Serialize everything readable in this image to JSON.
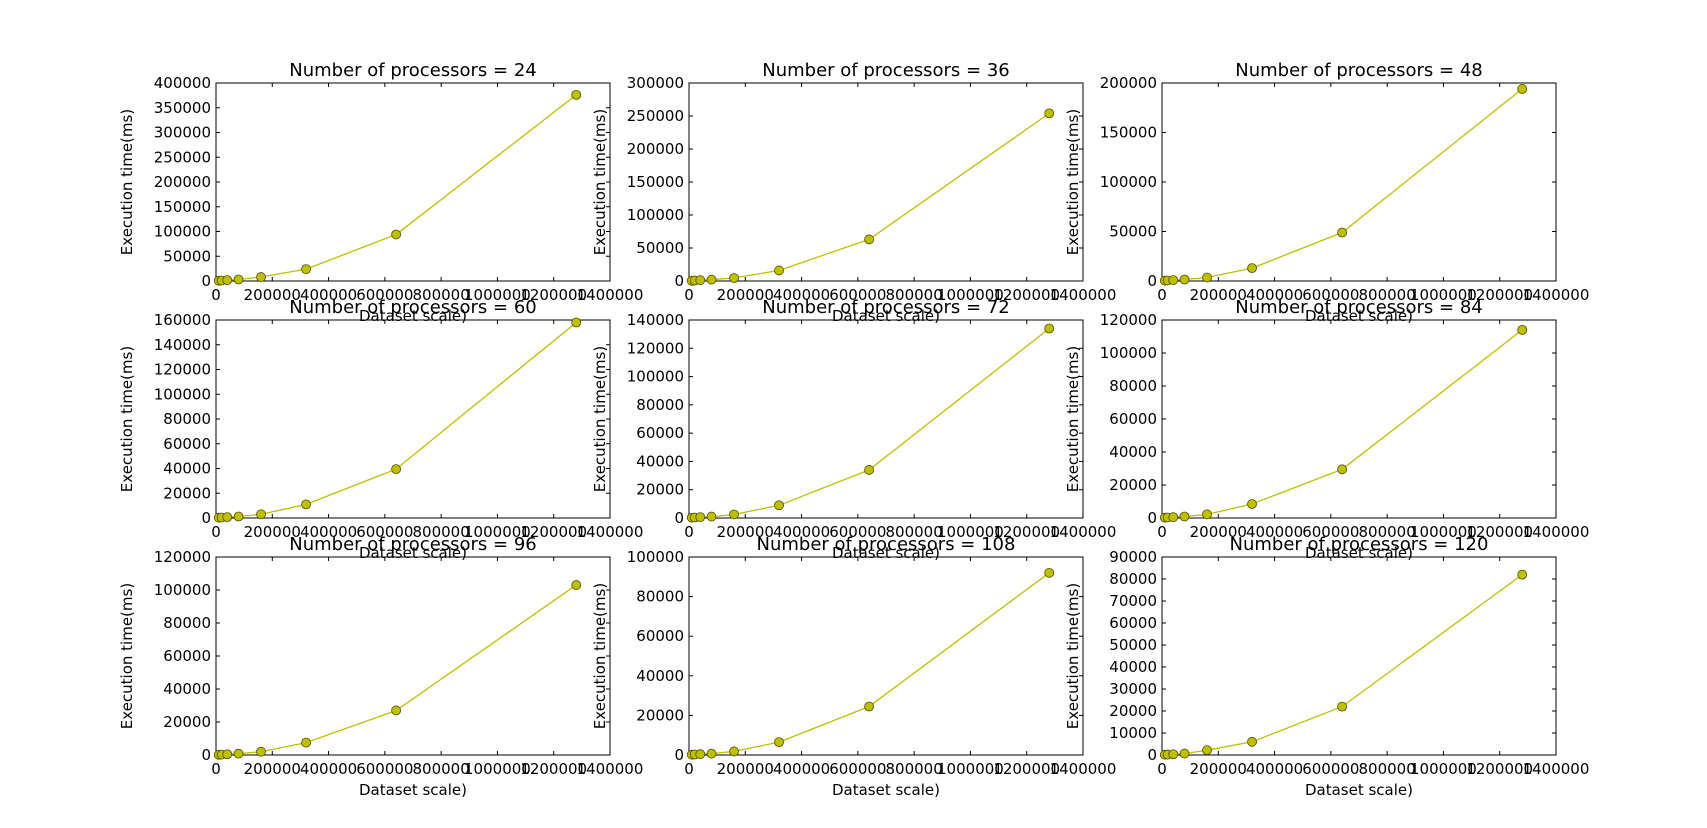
{
  "figure": {
    "background": "#ffffff"
  },
  "style": {
    "line_color": "#bfbf00",
    "marker_fill": "#bfbf00",
    "marker_edge": "#4d4d00",
    "axes_color": "#000000"
  },
  "chart_data": [
    {
      "type": "line",
      "title": "Number of processors = 24",
      "xlabel": "Dataset scale)",
      "ylabel": "Execution time(ms)",
      "xlim": [
        0,
        1400000
      ],
      "ylim": [
        0,
        400000
      ],
      "xticks": [
        0,
        200000,
        400000,
        600000,
        800000,
        1000000,
        1200000,
        1400000
      ],
      "yticks": [
        0,
        50000,
        100000,
        150000,
        200000,
        250000,
        300000,
        350000,
        400000
      ],
      "x": [
        10000,
        20000,
        40000,
        80000,
        160000,
        320000,
        640000,
        1280000
      ],
      "y": [
        500,
        1000,
        1800,
        3000,
        8000,
        24000,
        94000,
        376000
      ]
    },
    {
      "type": "line",
      "title": "Number of processors = 36",
      "xlabel": "Dataset scale)",
      "ylabel": "Execution time(ms)",
      "xlim": [
        0,
        1400000
      ],
      "ylim": [
        0,
        300000
      ],
      "xticks": [
        0,
        200000,
        400000,
        600000,
        800000,
        1000000,
        1200000,
        1400000
      ],
      "yticks": [
        0,
        50000,
        100000,
        150000,
        200000,
        250000,
        300000
      ],
      "x": [
        10000,
        20000,
        40000,
        80000,
        160000,
        320000,
        640000,
        1280000
      ],
      "y": [
        400,
        700,
        1200,
        2000,
        4500,
        16000,
        63000,
        254000
      ]
    },
    {
      "type": "line",
      "title": "Number of processors = 48",
      "xlabel": "Dataset scale)",
      "ylabel": "Execution time(ms)",
      "xlim": [
        0,
        1400000
      ],
      "ylim": [
        0,
        200000
      ],
      "xticks": [
        0,
        200000,
        400000,
        600000,
        800000,
        1000000,
        1200000,
        1400000
      ],
      "yticks": [
        0,
        50000,
        100000,
        150000,
        200000
      ],
      "x": [
        10000,
        20000,
        40000,
        80000,
        160000,
        320000,
        640000,
        1280000
      ],
      "y": [
        300,
        500,
        900,
        1500,
        3500,
        13000,
        49000,
        194000
      ]
    },
    {
      "type": "line",
      "title": "Number of processors = 60",
      "xlabel": "Dataset scale)",
      "ylabel": "Execution time(ms)",
      "xlim": [
        0,
        1400000
      ],
      "ylim": [
        0,
        160000
      ],
      "xticks": [
        0,
        200000,
        400000,
        600000,
        800000,
        1000000,
        1200000,
        1400000
      ],
      "yticks": [
        0,
        20000,
        40000,
        60000,
        80000,
        100000,
        120000,
        140000,
        160000
      ],
      "x": [
        10000,
        20000,
        40000,
        80000,
        160000,
        320000,
        640000,
        1280000
      ],
      "y": [
        250,
        400,
        700,
        1200,
        3000,
        11000,
        39500,
        158000
      ]
    },
    {
      "type": "line",
      "title": "Number of processors = 72",
      "xlabel": "Dataset scale)",
      "ylabel": "Execution time(ms)",
      "xlim": [
        0,
        1400000
      ],
      "ylim": [
        0,
        140000
      ],
      "xticks": [
        0,
        200000,
        400000,
        600000,
        800000,
        1000000,
        1200000,
        1400000
      ],
      "yticks": [
        0,
        20000,
        40000,
        60000,
        80000,
        100000,
        120000,
        140000
      ],
      "x": [
        10000,
        20000,
        40000,
        80000,
        160000,
        320000,
        640000,
        1280000
      ],
      "y": [
        200,
        350,
        600,
        1000,
        2500,
        9000,
        34000,
        134000
      ]
    },
    {
      "type": "line",
      "title": "Number of processors = 84",
      "xlabel": "Dataset scale)",
      "ylabel": "Execution time(ms)",
      "xlim": [
        0,
        1400000
      ],
      "ylim": [
        0,
        120000
      ],
      "xticks": [
        0,
        200000,
        400000,
        600000,
        800000,
        1000000,
        1200000,
        1400000
      ],
      "yticks": [
        0,
        20000,
        40000,
        60000,
        80000,
        100000,
        120000
      ],
      "x": [
        10000,
        20000,
        40000,
        80000,
        160000,
        320000,
        640000,
        1280000
      ],
      "y": [
        200,
        300,
        500,
        900,
        2200,
        8500,
        29500,
        114000
      ]
    },
    {
      "type": "line",
      "title": "Number of processors = 96",
      "xlabel": "Dataset scale)",
      "ylabel": "Execution time(ms)",
      "xlim": [
        0,
        1400000
      ],
      "ylim": [
        0,
        120000
      ],
      "xticks": [
        0,
        200000,
        400000,
        600000,
        800000,
        1000000,
        1200000,
        1400000
      ],
      "yticks": [
        0,
        20000,
        40000,
        60000,
        80000,
        100000,
        120000
      ],
      "x": [
        10000,
        20000,
        40000,
        80000,
        160000,
        320000,
        640000,
        1280000
      ],
      "y": [
        150,
        250,
        450,
        800,
        2000,
        7500,
        27000,
        103000
      ]
    },
    {
      "type": "line",
      "title": "Number of processors = 108",
      "xlabel": "Dataset scale)",
      "ylabel": "Execution time(ms)",
      "xlim": [
        0,
        1400000
      ],
      "ylim": [
        0,
        100000
      ],
      "xticks": [
        0,
        200000,
        400000,
        600000,
        800000,
        1000000,
        1200000,
        1400000
      ],
      "yticks": [
        0,
        20000,
        40000,
        60000,
        80000,
        100000
      ],
      "x": [
        10000,
        20000,
        40000,
        80000,
        160000,
        320000,
        640000,
        1280000
      ],
      "y": [
        150,
        250,
        400,
        700,
        1800,
        6500,
        24500,
        92000
      ]
    },
    {
      "type": "line",
      "title": "Number of processors = 120",
      "xlabel": "Dataset scale)",
      "ylabel": "Execution time(ms)",
      "xlim": [
        0,
        1400000
      ],
      "ylim": [
        0,
        90000
      ],
      "xticks": [
        0,
        200000,
        400000,
        600000,
        800000,
        1000000,
        1200000,
        1400000
      ],
      "yticks": [
        0,
        10000,
        20000,
        30000,
        40000,
        50000,
        60000,
        70000,
        80000,
        90000
      ],
      "x": [
        10000,
        20000,
        40000,
        80000,
        160000,
        320000,
        640000,
        1280000
      ],
      "y": [
        150,
        200,
        350,
        650,
        2200,
        6000,
        22000,
        82000
      ]
    }
  ]
}
